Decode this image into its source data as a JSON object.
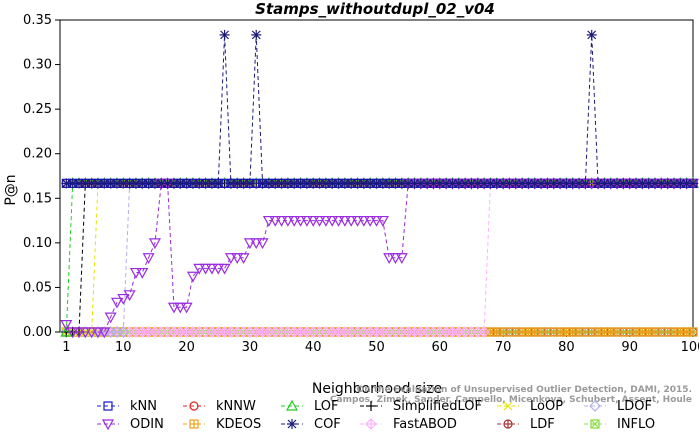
{
  "chart_data": {
    "type": "line",
    "title": "Stamps_withoutdupl_02_v04",
    "xlabel": "Neighborhood size",
    "ylabel": "P@n",
    "xlim": [
      0,
      100
    ],
    "ylim": [
      0,
      0.35
    ],
    "xticks": [
      1,
      10,
      20,
      30,
      40,
      50,
      60,
      70,
      80,
      90,
      100
    ],
    "yticks": [
      0.0,
      0.05,
      0.1,
      0.15,
      0.2,
      0.25,
      0.3,
      0.35
    ],
    "grid": false,
    "legend_position": "bottom",
    "watermark": [
      "Campos, Zimek, Sander, Campello, Micenkova, Schubert, Assent, Houle",
      "On the Evaluation of Unsupervised Outlier Detection, DAMI, 2015."
    ],
    "series": [
      {
        "name": "kNN",
        "color": "#1a1acc",
        "marker": "square",
        "points": [
          [
            1,
            0.1667
          ],
          [
            100,
            0.1667
          ]
        ]
      },
      {
        "name": "kNNW",
        "color": "#dd2222",
        "marker": "circle",
        "points": [
          [
            1,
            0.1667
          ],
          [
            100,
            0.1667
          ]
        ]
      },
      {
        "name": "LOF",
        "color": "#22cc22",
        "marker": "triangle",
        "points": [
          [
            1,
            0
          ],
          [
            2,
            0.1667
          ],
          [
            100,
            0.1667
          ]
        ]
      },
      {
        "name": "SimplifiedLOF",
        "color": "#000000",
        "marker": "plus",
        "points": [
          [
            1,
            0
          ],
          [
            2,
            0
          ],
          [
            3,
            0
          ],
          [
            4,
            0.1667
          ],
          [
            100,
            0.1667
          ]
        ]
      },
      {
        "name": "LoOP",
        "color": "#e6e600",
        "marker": "cross",
        "points": [
          [
            1,
            0
          ],
          [
            5,
            0
          ],
          [
            6,
            0.1667
          ],
          [
            100,
            0.1667
          ]
        ]
      },
      {
        "name": "LDOF",
        "color": "#b0b0ee",
        "marker": "diamond",
        "points": [
          [
            1,
            0
          ],
          [
            10,
            0
          ],
          [
            11,
            0.1667
          ],
          [
            100,
            0.1667
          ]
        ]
      },
      {
        "name": "ODIN",
        "color": "#9a2be2",
        "marker": "triangle-down",
        "points": [
          [
            1,
            0.0083
          ],
          [
            2,
            0
          ],
          [
            3,
            0
          ],
          [
            4,
            0
          ],
          [
            5,
            0
          ],
          [
            6,
            0
          ],
          [
            7,
            0
          ],
          [
            8,
            0.0167
          ],
          [
            9,
            0.0333
          ],
          [
            10,
            0.0375
          ],
          [
            11,
            0.0417
          ],
          [
            12,
            0.0667
          ],
          [
            13,
            0.0667
          ],
          [
            14,
            0.0833
          ],
          [
            15,
            0.1
          ],
          [
            16,
            0.1667
          ],
          [
            17,
            0.1667
          ],
          [
            18,
            0.0278
          ],
          [
            19,
            0.0278
          ],
          [
            20,
            0.0278
          ],
          [
            21,
            0.0625
          ],
          [
            22,
            0.0714
          ],
          [
            23,
            0.0714
          ],
          [
            24,
            0.0714
          ],
          [
            25,
            0.0714
          ],
          [
            26,
            0.0714
          ],
          [
            27,
            0.0833
          ],
          [
            28,
            0.0833
          ],
          [
            29,
            0.0833
          ],
          [
            30,
            0.1
          ],
          [
            31,
            0.1
          ],
          [
            32,
            0.1
          ],
          [
            33,
            0.125
          ],
          [
            34,
            0.125
          ],
          [
            35,
            0.125
          ],
          [
            36,
            0.125
          ],
          [
            37,
            0.125
          ],
          [
            38,
            0.125
          ],
          [
            39,
            0.125
          ],
          [
            40,
            0.125
          ],
          [
            41,
            0.125
          ],
          [
            42,
            0.125
          ],
          [
            43,
            0.125
          ],
          [
            44,
            0.125
          ],
          [
            45,
            0.125
          ],
          [
            46,
            0.125
          ],
          [
            47,
            0.125
          ],
          [
            48,
            0.125
          ],
          [
            49,
            0.125
          ],
          [
            50,
            0.125
          ],
          [
            51,
            0.125
          ],
          [
            52,
            0.0833
          ],
          [
            53,
            0.0833
          ],
          [
            54,
            0.0833
          ],
          [
            55,
            0.1667
          ],
          [
            100,
            0.1667
          ]
        ]
      },
      {
        "name": "KDEOS",
        "color": "#f0a020",
        "marker": "square-cross",
        "points": [
          [
            1,
            0
          ],
          [
            100,
            0
          ]
        ]
      },
      {
        "name": "COF",
        "color": "#1a1a7a",
        "marker": "asterisk",
        "points": [
          [
            1,
            0.1667
          ],
          [
            25,
            0.1667
          ],
          [
            26,
            0.3333
          ],
          [
            27,
            0.1667
          ],
          [
            30,
            0.1667
          ],
          [
            31,
            0.3333
          ],
          [
            32,
            0.1667
          ],
          [
            83,
            0.1667
          ],
          [
            84,
            0.3333
          ],
          [
            85,
            0.1667
          ],
          [
            100,
            0.1667
          ]
        ]
      },
      {
        "name": "FastABOD",
        "color": "#ffb0ff",
        "marker": "diamond-plus",
        "points": [
          [
            1,
            0
          ],
          [
            67,
            0
          ],
          [
            68,
            0.1667
          ],
          [
            100,
            0.1667
          ]
        ]
      },
      {
        "name": "LDF",
        "color": "#aa3333",
        "marker": "circle-plus",
        "points": [
          [
            1,
            0
          ],
          [
            100,
            0
          ]
        ]
      },
      {
        "name": "INFLO",
        "color": "#88dd44",
        "marker": "square-x",
        "points": [
          [
            1,
            0
          ],
          [
            100,
            0
          ]
        ]
      }
    ],
    "legend_rows": [
      [
        "kNN",
        "kNNW",
        "LOF",
        "SimplifiedLOF",
        "LoOP",
        "LDOF"
      ],
      [
        "ODIN",
        "KDEOS",
        "COF",
        "FastABOD",
        "LDF",
        "INFLO"
      ]
    ]
  }
}
